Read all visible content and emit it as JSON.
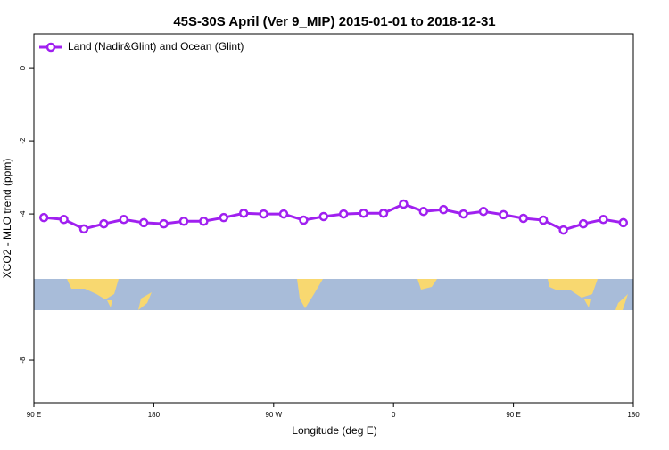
{
  "chart_data": {
    "type": "line",
    "title": "45S-30S April (Ver 9_MIP)   2015-01-01 to 2018-12-31",
    "x_label": "Longitude (deg E)",
    "y_label": "XCO2 - MLO trend (ppm)",
    "x": [
      97.5,
      112.5,
      127.5,
      142.5,
      157.5,
      172.5,
      187.5,
      202.5,
      217.5,
      232.5,
      247.5,
      262.5,
      277.5,
      292.5,
      307.5,
      322.5,
      337.5,
      352.5,
      367.5,
      382.5,
      397.5,
      412.5,
      427.5,
      442.5,
      457.5,
      472.5,
      487.5,
      502.5,
      517.5,
      532.5
    ],
    "series": [
      {
        "name": "Land (Nadir&Glint) and Ocean (Glint)",
        "color": "#a020f0",
        "values": [
          -4.1,
          -4.15,
          -4.41,
          -4.27,
          -4.15,
          -4.24,
          -4.27,
          -4.2,
          -4.2,
          -4.1,
          -3.98,
          -4.0,
          -4.0,
          -4.17,
          -4.07,
          -4.0,
          -3.98,
          -3.98,
          -3.73,
          -3.93,
          -3.88,
          -4.0,
          -3.93,
          -4.02,
          -4.12,
          -4.17,
          -4.44,
          -4.27,
          -4.15,
          -4.24
        ]
      }
    ],
    "xlim": [
      90,
      540
    ],
    "xticks": [
      {
        "value": 90,
        "label": "90 E"
      },
      180,
      {
        "value": 270,
        "label": "90 W"
      },
      {
        "value": 360,
        "label": "0"
      },
      {
        "value": 450,
        "label": "90 E"
      },
      {
        "value": 540,
        "label": "180"
      }
    ],
    "ylim": [
      -9.17,
      0.93
    ],
    "yticks": [
      0,
      -2,
      -4,
      -8
    ],
    "legend": "top-left"
  }
}
